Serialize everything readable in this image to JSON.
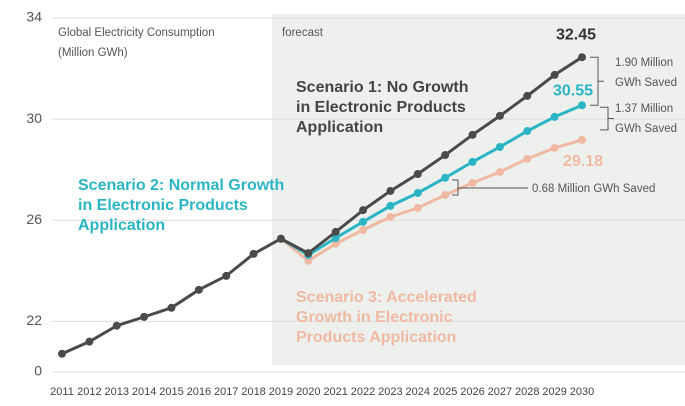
{
  "chart_data": {
    "type": "line",
    "title": [
      "Global Electricity Consumption",
      "(Million GWh)"
    ],
    "forecast_label": "forecast",
    "categories": [
      "2011",
      "2012",
      "2013",
      "2014",
      "2015",
      "2016",
      "2017",
      "2018",
      "2019",
      "2020",
      "2021",
      "2022",
      "2023",
      "2024",
      "2025",
      "2026",
      "2027",
      "2028",
      "2029",
      "2030"
    ],
    "series": [
      {
        "name": [
          "Scenario 1: No Growth",
          "in Electronic Products",
          "Application"
        ],
        "color": "#4a4a4a",
        "values": [
          20.72,
          21.2,
          21.83,
          22.18,
          22.54,
          23.25,
          23.8,
          24.67,
          25.27,
          24.7,
          25.54,
          26.4,
          27.16,
          27.83,
          28.58,
          29.38,
          30.13,
          30.92,
          31.75,
          32.45
        ]
      },
      {
        "name": [
          "Scenario 2: Normal Growth",
          "in Electronic Products",
          "Application"
        ],
        "color": "#2bb5c4",
        "values": [
          null,
          null,
          null,
          null,
          null,
          null,
          null,
          null,
          25.27,
          24.63,
          25.3,
          25.94,
          26.57,
          27.08,
          27.68,
          28.31,
          28.9,
          29.53,
          30.09,
          30.55
        ]
      },
      {
        "name": [
          "Scenario 3: Accelerated",
          "Growth in Electronic",
          "Products Application"
        ],
        "color": "#f0b9a4",
        "values": [
          null,
          null,
          null,
          null,
          null,
          null,
          null,
          null,
          25.27,
          24.4,
          25.07,
          25.62,
          26.13,
          26.49,
          27.0,
          27.48,
          27.91,
          28.43,
          28.86,
          29.18
        ]
      }
    ],
    "annotations": [
      [
        "1.90 Million",
        "GWh Saved"
      ],
      [
        "1.37 Million",
        "GWh Saved"
      ],
      [
        "0.68 Million GWh Saved"
      ]
    ],
    "ylim": [
      20,
      34
    ],
    "yticks": [
      {
        "value": 20,
        "label": "0"
      },
      22,
      26,
      30,
      34
    ]
  }
}
